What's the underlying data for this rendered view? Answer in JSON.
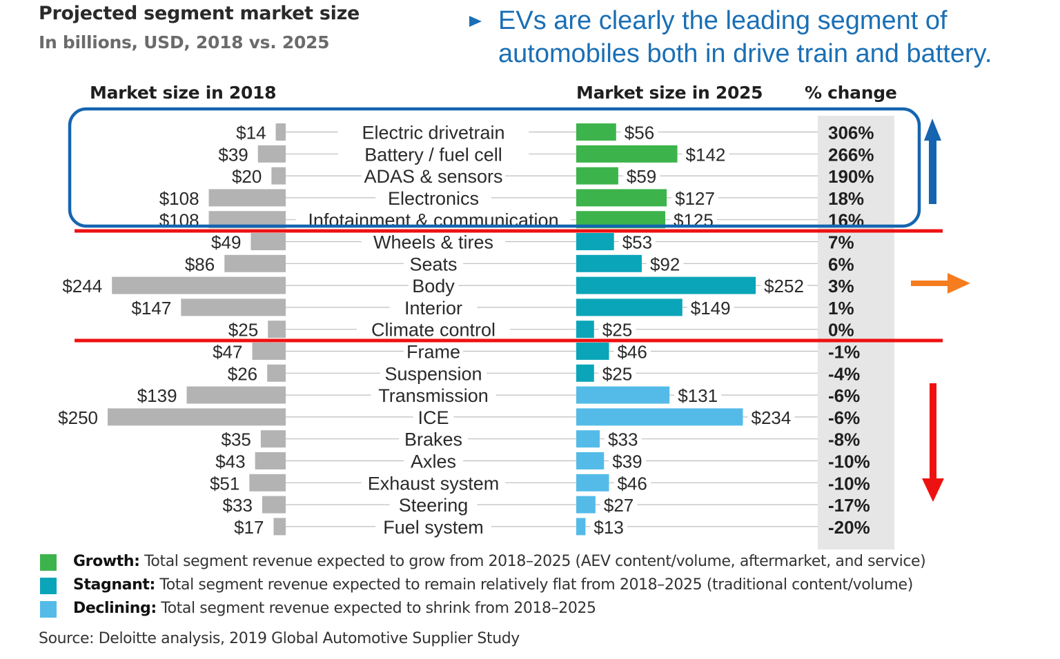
{
  "title": "Projected segment market size",
  "subtitle": "In billions, USD, 2018 vs. 2025",
  "callout": {
    "line1": "EVs are clearly the leading segment of",
    "line2": "automobiles both in drive train and battery."
  },
  "headers": {
    "left": "Market size in 2018",
    "right": "Market size in 2025",
    "change": "% change"
  },
  "colors": {
    "growth": "#3cb44b",
    "stagnant": "#0aa5b8",
    "declining": "#54bbe8",
    "bar2018": "#b3b3b3",
    "change_bg": "#e6e6e6",
    "highlight_box": "#1565b0",
    "divider": "#ee1111",
    "arrow_up": "#1565b0",
    "arrow_right": "#f57c1f",
    "arrow_down": "#ee1111"
  },
  "chart_data": {
    "type": "bar",
    "categories": [
      "Electric drivetrain",
      "Battery / fuel cell",
      "ADAS & sensors",
      "Electronics",
      "Infotainment & communication",
      "Wheels & tires",
      "Seats",
      "Body",
      "Interior",
      "Climate control",
      "Frame",
      "Suspension",
      "Transmission",
      "ICE",
      "Brakes",
      "Axles",
      "Exhaust system",
      "Steering",
      "Fuel system"
    ],
    "series": [
      {
        "name": "Market size in 2018",
        "values": [
          14,
          39,
          20,
          108,
          108,
          49,
          86,
          244,
          147,
          25,
          47,
          26,
          139,
          250,
          35,
          43,
          51,
          33,
          17
        ]
      },
      {
        "name": "Market size in 2025",
        "values": [
          56,
          142,
          59,
          127,
          125,
          53,
          92,
          252,
          149,
          25,
          46,
          25,
          131,
          234,
          33,
          39,
          46,
          27,
          13
        ]
      }
    ],
    "labels_2018": [
      "$14",
      "$39",
      "$20",
      "$108",
      "$108",
      "$49",
      "$86",
      "$244",
      "$147",
      "$25",
      "$47",
      "$26",
      "$139",
      "$250",
      "$35",
      "$43",
      "$51",
      "$33",
      "$17"
    ],
    "labels_2025": [
      "$56",
      "$142",
      "$59",
      "$127",
      "$125",
      "$53",
      "$92",
      "$252",
      "$149",
      "$25",
      "$46",
      "$25",
      "$131",
      "$234",
      "$33",
      "$39",
      "$46",
      "$27",
      "$13"
    ],
    "pct_change": [
      "306%",
      "266%",
      "190%",
      "18%",
      "16%",
      "7%",
      "6%",
      "3%",
      "1%",
      "0%",
      "-1%",
      "-4%",
      "-6%",
      "-6%",
      "-8%",
      "-10%",
      "-10%",
      "-17%",
      "-20%"
    ],
    "segment": [
      "growth",
      "growth",
      "growth",
      "growth",
      "growth",
      "stagnant",
      "stagnant",
      "stagnant",
      "stagnant",
      "stagnant",
      "stagnant",
      "stagnant",
      "declining",
      "declining",
      "declining",
      "declining",
      "declining",
      "declining",
      "declining"
    ]
  },
  "legend": [
    {
      "key": "growth",
      "bold": "Growth:",
      "text": " Total segment revenue expected to grow from 2018–2025 (AEV content/volume, aftermarket, and service)"
    },
    {
      "key": "stagnant",
      "bold": "Stagnant:",
      "text": " Total segment revenue expected to remain relatively flat from 2018–2025 (traditional content/volume)"
    },
    {
      "key": "declining",
      "bold": "Declining:",
      "text": " Total segment revenue expected to shrink from 2018–2025"
    }
  ],
  "source": "Source: Deloitte analysis, 2019 Global Automotive Supplier Study"
}
